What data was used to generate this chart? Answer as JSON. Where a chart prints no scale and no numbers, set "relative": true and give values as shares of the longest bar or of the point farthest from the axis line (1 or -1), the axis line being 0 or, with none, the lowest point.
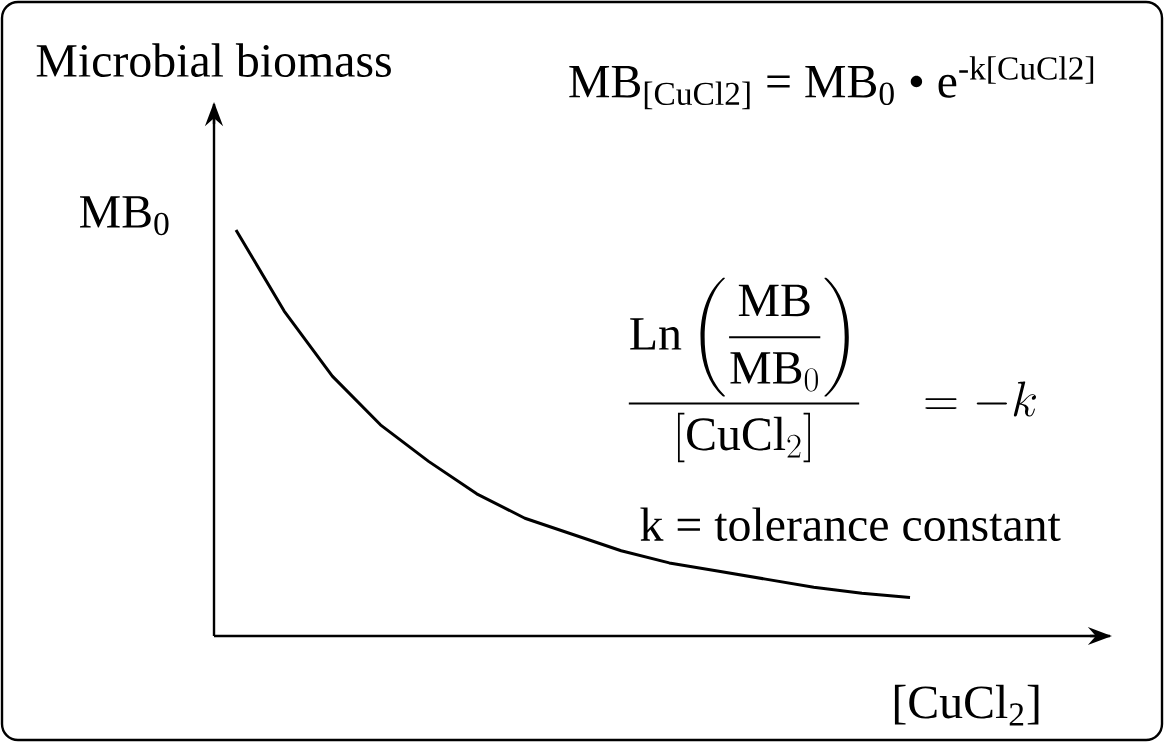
{
  "chart_data": {
    "type": "line",
    "relative": true,
    "xlabel": "[CuCl$_{2}$]",
    "ylabel": "Microbial biomass",
    "categories": [
      null,
      null,
      null,
      null,
      null,
      null,
      null,
      null,
      null,
      null,
      null,
      null,
      null,
      null,
      null
    ],
    "values": [
      1.0,
      0.8,
      0.64,
      0.52,
      0.43,
      0.35,
      0.29,
      0.25,
      0.21,
      0.18,
      0.16,
      0.14,
      0.12,
      0.105,
      0.095
    ],
    "color": "#000000",
    "marker": "none",
    "line_style": "solid",
    "annotations": [
      "MB$_{0}$",
      "MB$_{[CuCl2]}$ = MB$_{0}$ • e$^{-k[CuCl2]}$",
      "\\frac{\\mathrm{Ln}\\left(\\dfrac{\\mathrm{MB}}{\\mathrm{MB}_{0}}\\right)}{[\\mathrm{CuCl}_{2}]}\\quad = -k",
      "k = tolerance constant"
    ]
  }
}
